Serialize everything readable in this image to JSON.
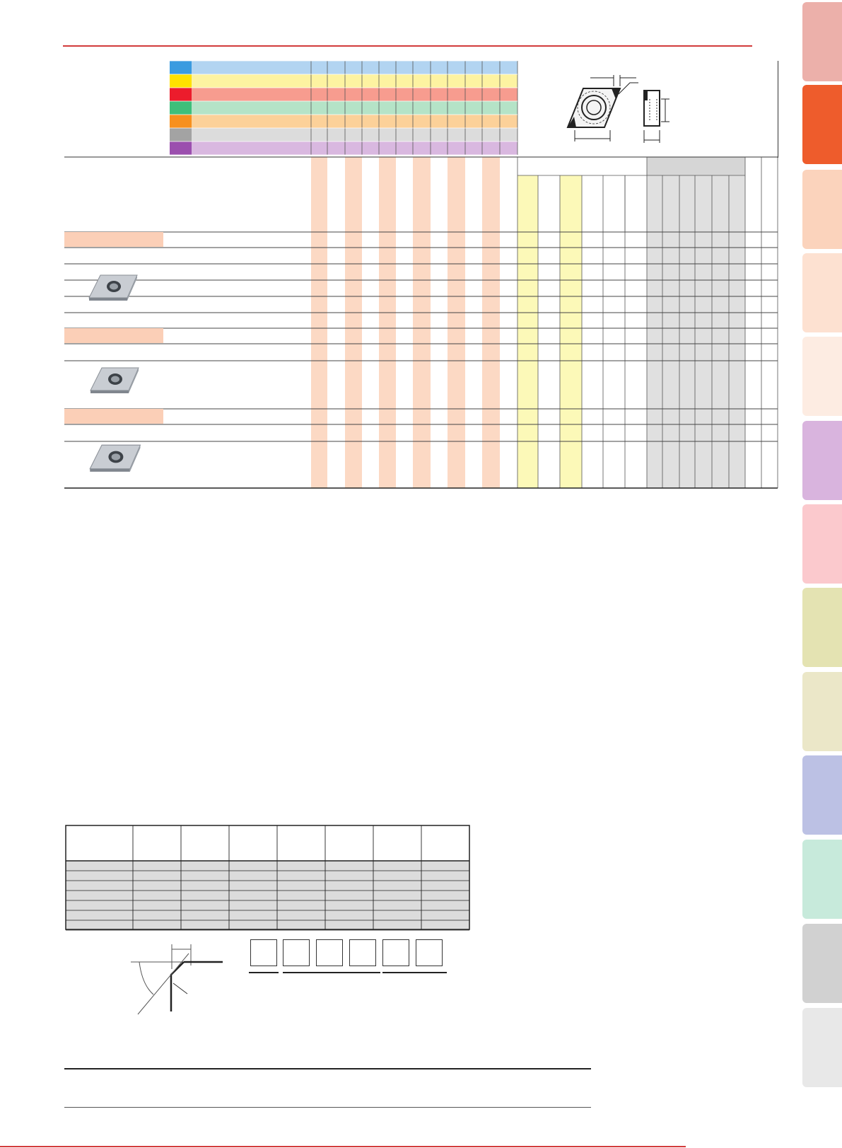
{
  "page": {
    "background": "#ffffff",
    "accent_red": "#d23b3b"
  },
  "side_tabs": [
    {
      "color": "#ecb0aa"
    },
    {
      "color": "#ee5c2c"
    },
    {
      "color": "#fbd3bc"
    },
    {
      "color": "#fde1d1"
    },
    {
      "color": "#fdece2"
    },
    {
      "color": "#d9b4de"
    },
    {
      "color": "#fbc9cd"
    },
    {
      "color": "#e4e3b2"
    },
    {
      "color": "#ebe7c8"
    },
    {
      "color": "#bcc1e4"
    },
    {
      "color": "#c7eadb"
    },
    {
      "color": "#d1d1d1"
    },
    {
      "color": "#e8e8e8"
    }
  ],
  "material_legend": [
    {
      "color": "#3a9be0",
      "band": "#b2d4f1"
    },
    {
      "color": "#ffe100",
      "band": "#fdf3a1"
    },
    {
      "color": "#ec1c2c",
      "band": "#f79c8f"
    },
    {
      "color": "#3ebf7a",
      "band": "#b5e3c7"
    },
    {
      "color": "#f7901e",
      "band": "#fcd199"
    },
    {
      "color": "#a3a3a3",
      "band": "#dcdcdc"
    },
    {
      "color": "#9b4fae",
      "band": "#d9b8e0"
    }
  ],
  "insert_groups": [
    {
      "icon": "insert-rhombus-icon"
    },
    {
      "icon": "insert-rhombus-icon"
    },
    {
      "icon": "insert-rhombus-icon"
    }
  ],
  "spec_boxes": [
    {
      "label": ""
    },
    {
      "label": ""
    },
    {
      "label": ""
    },
    {
      "label": ""
    },
    {
      "label": ""
    },
    {
      "label": ""
    }
  ],
  "icons": {
    "insert_diagram": "rhombus-insert-diagram-icon",
    "edge_diagram": "cutting-edge-angle-diagram-icon"
  }
}
